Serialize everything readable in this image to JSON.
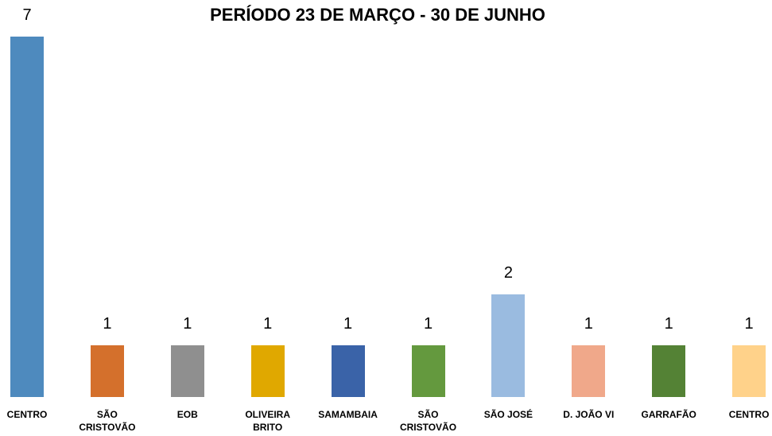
{
  "chart_data": {
    "type": "bar",
    "title": "PERÍODO 23 DE MARÇO - 30 DE JUNHO",
    "categories": [
      "CENTRO",
      "SÃO CRISTOVÃO",
      "EOB",
      "OLIVEIRA BRITO",
      "SAMAMBAIA",
      "SÃO CRISTOVÃO",
      "SÃO JOSÉ",
      "D. JOÃO VI",
      "GARRAFÃO",
      "CENTRO"
    ],
    "values": [
      7,
      1,
      1,
      1,
      1,
      1,
      2,
      1,
      1,
      1
    ],
    "colors": [
      "#4e8abe",
      "#d4702c",
      "#8f8f8f",
      "#e0a800",
      "#3a63a8",
      "#64993e",
      "#9abbe0",
      "#f0a88a",
      "#548235",
      "#ffd28a"
    ]
  }
}
